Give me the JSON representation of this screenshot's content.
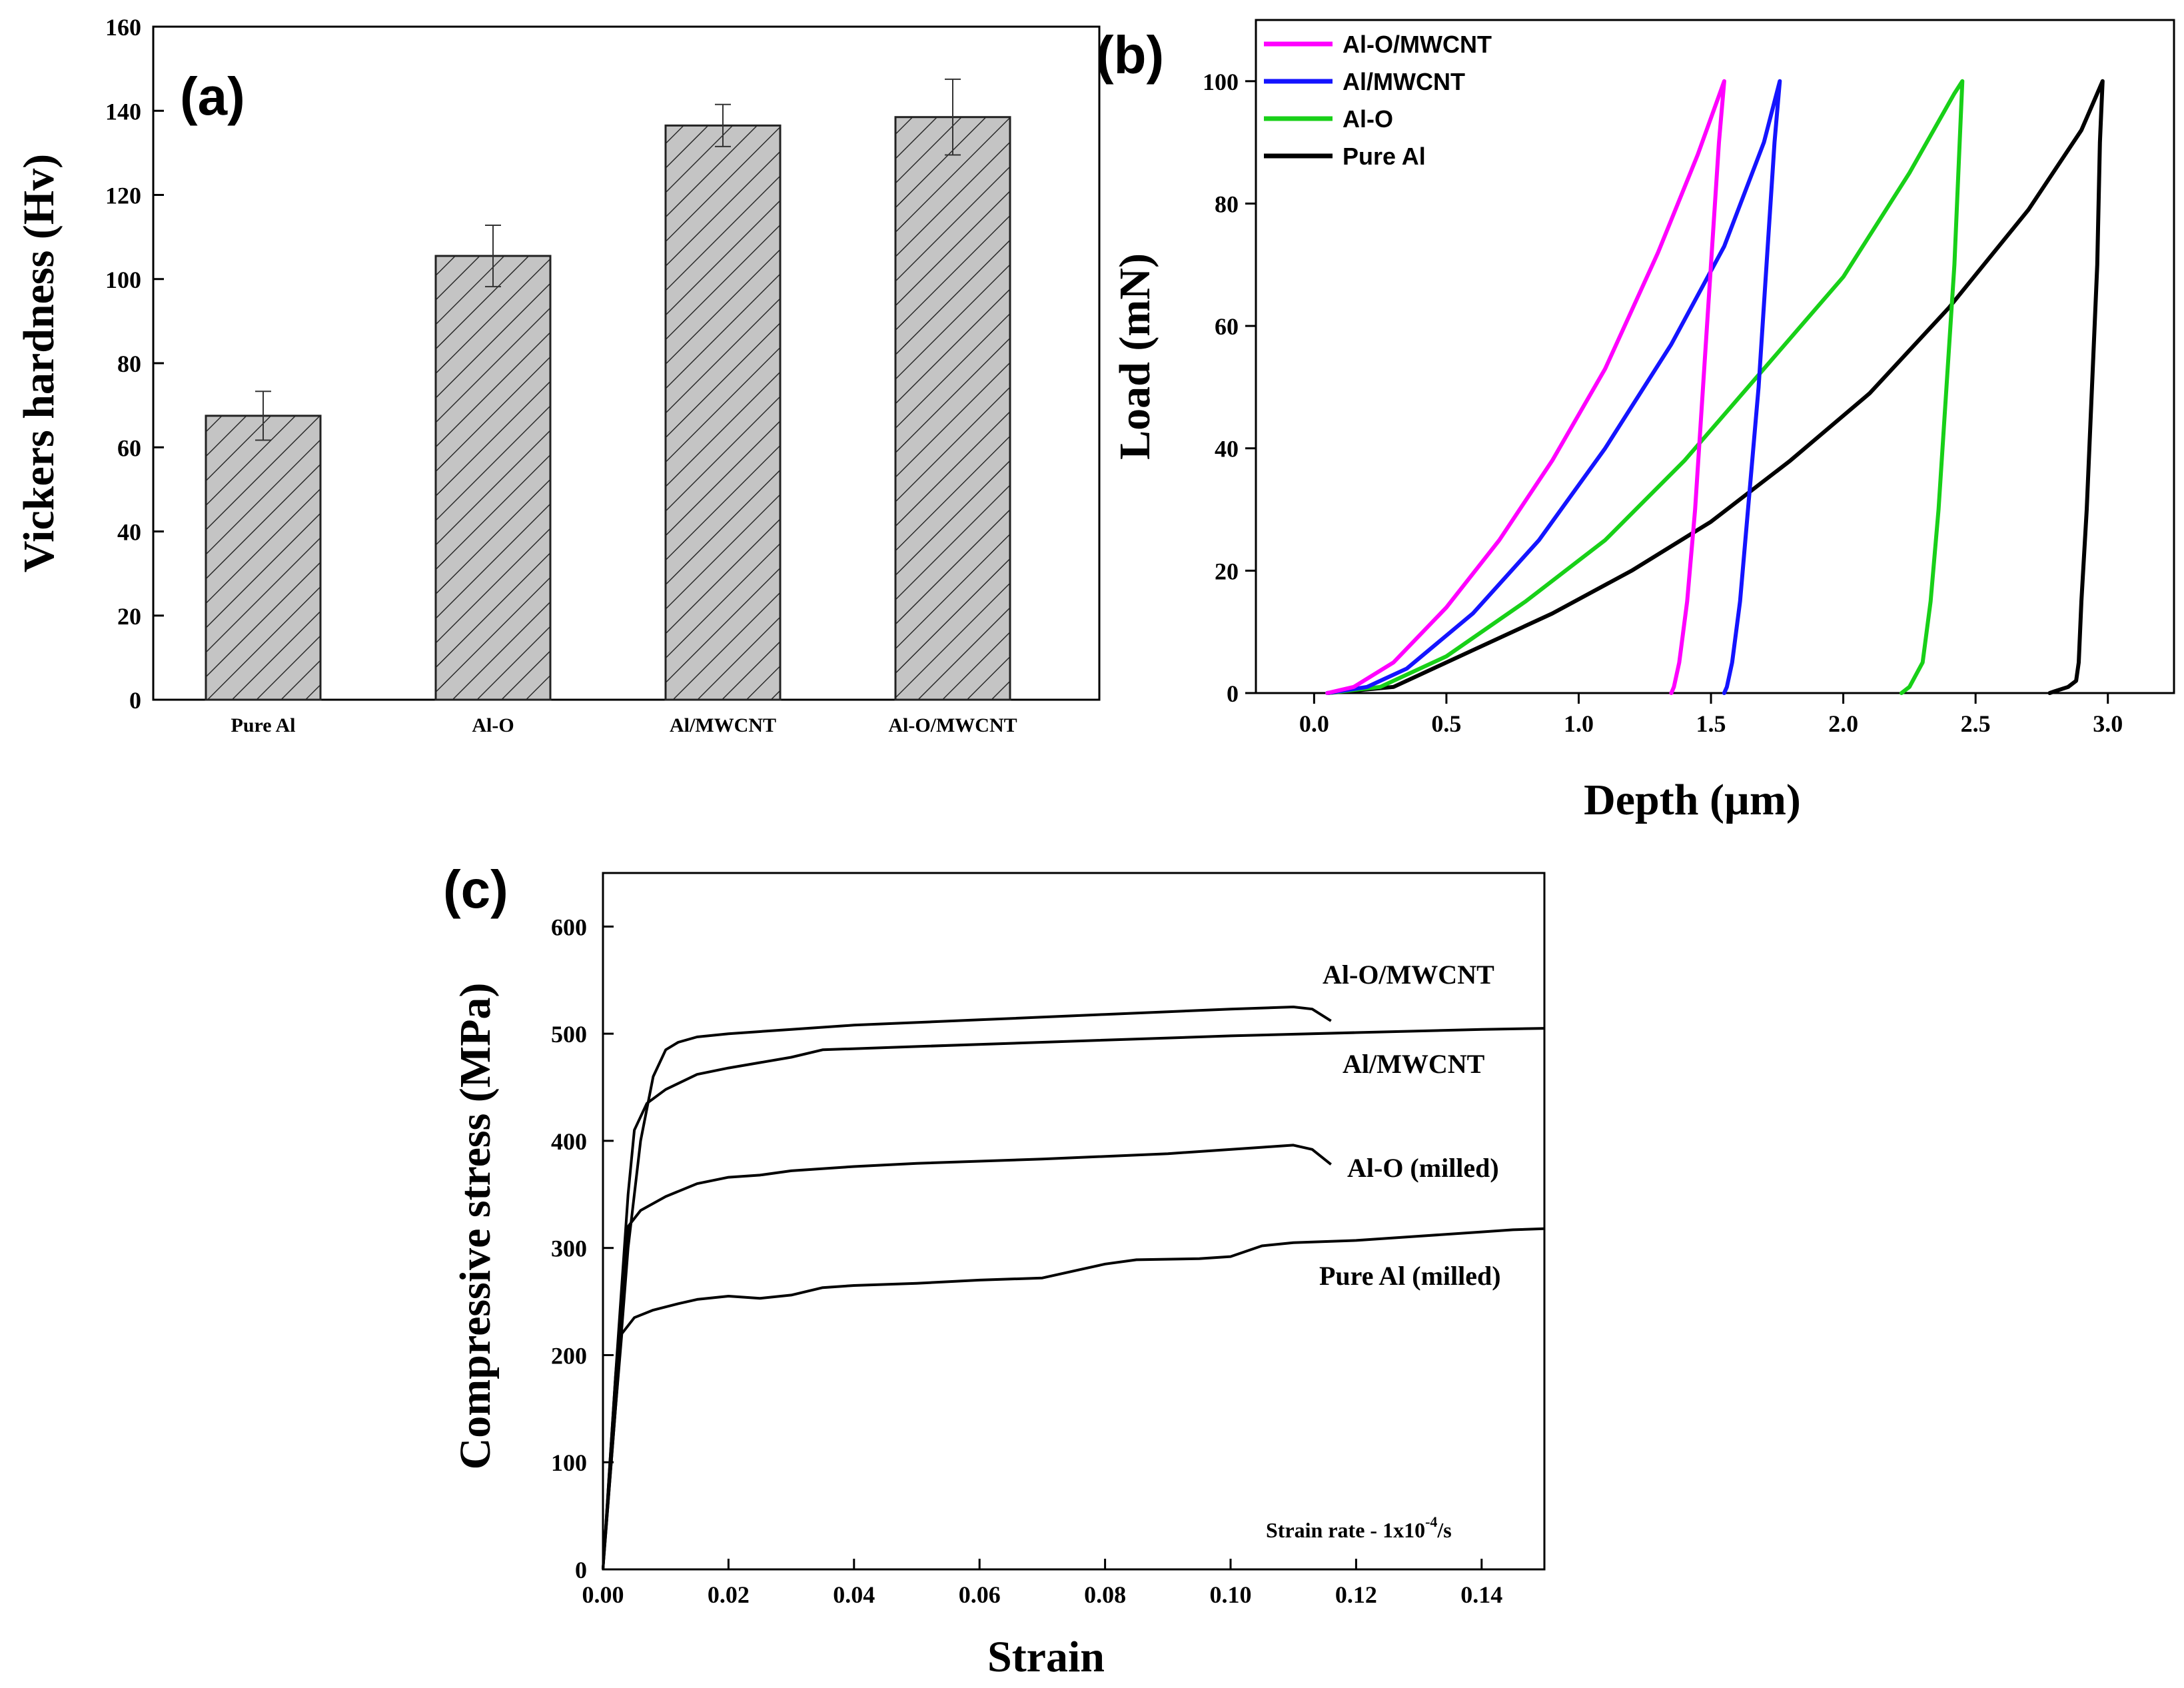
{
  "chart_data": [
    {
      "panel": "(a)",
      "type": "bar",
      "title": "",
      "xlabel": "",
      "ylabel": "Vickers hardness (Hv)",
      "categories": [
        "Pure Al",
        "Al-O",
        "Al/MWCNT",
        "Al-O/MWCNT"
      ],
      "values": [
        67.5,
        105.5,
        136.5,
        138.5
      ],
      "errors": [
        5.8,
        7.3,
        5.0,
        9.0
      ],
      "ylim": [
        0,
        160
      ],
      "yticks": [
        "0",
        "20",
        "40",
        "60",
        "80",
        "100",
        "120",
        "140",
        "160"
      ],
      "grid": false,
      "colors": {
        "bar_fill": "#c4c4c4",
        "hatch": "#2a2a2a",
        "edge": "#222222"
      }
    },
    {
      "panel": "(b)",
      "type": "line",
      "title": "",
      "xlabel": "Depth (µm)",
      "ylabel": "Load (mN)",
      "xlim": [
        -0.22,
        3.25
      ],
      "ylim": [
        0,
        110
      ],
      "xticks": [
        "0.0",
        "0.5",
        "1.0",
        "1.5",
        "2.0",
        "2.5",
        "3.0"
      ],
      "yticks": [
        "0",
        "20",
        "40",
        "60",
        "80",
        "100"
      ],
      "legend_position": "top-left",
      "series": [
        {
          "name": "Al-O/MWCNT",
          "color": "#ff00ff",
          "loading": [
            [
              0.05,
              0
            ],
            [
              0.15,
              1
            ],
            [
              0.3,
              5
            ],
            [
              0.5,
              14
            ],
            [
              0.7,
              25
            ],
            [
              0.9,
              38
            ],
            [
              1.1,
              53
            ],
            [
              1.3,
              72
            ],
            [
              1.45,
              88
            ],
            [
              1.55,
              100
            ]
          ],
          "unloading": [
            [
              1.55,
              100
            ],
            [
              1.53,
              90
            ],
            [
              1.5,
              70
            ],
            [
              1.47,
              50
            ],
            [
              1.44,
              30
            ],
            [
              1.41,
              15
            ],
            [
              1.38,
              5
            ],
            [
              1.36,
              1
            ],
            [
              1.35,
              0
            ]
          ]
        },
        {
          "name": "Al/MWCNT",
          "color": "#1414ff",
          "loading": [
            [
              0.05,
              0
            ],
            [
              0.2,
              1
            ],
            [
              0.35,
              4
            ],
            [
              0.6,
              13
            ],
            [
              0.85,
              25
            ],
            [
              1.1,
              40
            ],
            [
              1.35,
              57
            ],
            [
              1.55,
              73
            ],
            [
              1.7,
              90
            ],
            [
              1.76,
              100
            ]
          ],
          "unloading": [
            [
              1.76,
              100
            ],
            [
              1.74,
              90
            ],
            [
              1.71,
              70
            ],
            [
              1.68,
              50
            ],
            [
              1.64,
              30
            ],
            [
              1.61,
              15
            ],
            [
              1.58,
              5
            ],
            [
              1.56,
              1
            ],
            [
              1.55,
              0
            ]
          ]
        },
        {
          "name": "Al-O",
          "color": "#18d018",
          "loading": [
            [
              0.05,
              0
            ],
            [
              0.25,
              1
            ],
            [
              0.5,
              6
            ],
            [
              0.8,
              15
            ],
            [
              1.1,
              25
            ],
            [
              1.4,
              38
            ],
            [
              1.7,
              53
            ],
            [
              2.0,
              68
            ],
            [
              2.25,
              85
            ],
            [
              2.42,
              98
            ],
            [
              2.45,
              100
            ]
          ],
          "unloading": [
            [
              2.45,
              100
            ],
            [
              2.44,
              90
            ],
            [
              2.42,
              70
            ],
            [
              2.39,
              50
            ],
            [
              2.36,
              30
            ],
            [
              2.33,
              15
            ],
            [
              2.3,
              5
            ],
            [
              2.25,
              1
            ],
            [
              2.22,
              0
            ]
          ]
        },
        {
          "name": "Pure Al",
          "color": "#000000",
          "loading": [
            [
              0.05,
              0
            ],
            [
              0.3,
              1
            ],
            [
              0.6,
              7
            ],
            [
              0.9,
              13
            ],
            [
              1.2,
              20
            ],
            [
              1.5,
              28
            ],
            [
              1.8,
              38
            ],
            [
              2.1,
              49
            ],
            [
              2.4,
              63
            ],
            [
              2.7,
              79
            ],
            [
              2.9,
              92
            ],
            [
              2.98,
              100
            ]
          ],
          "unloading": [
            [
              2.98,
              100
            ],
            [
              2.97,
              90
            ],
            [
              2.96,
              70
            ],
            [
              2.94,
              50
            ],
            [
              2.92,
              30
            ],
            [
              2.9,
              15
            ],
            [
              2.89,
              5
            ],
            [
              2.88,
              2
            ],
            [
              2.85,
              1
            ],
            [
              2.8,
              0.3
            ],
            [
              2.78,
              0
            ]
          ]
        }
      ]
    },
    {
      "panel": "(c)",
      "type": "line",
      "title": "",
      "xlabel": "Strain",
      "ylabel": "Compressive stress (MPa)",
      "xlim": [
        0,
        0.15
      ],
      "ylim": [
        0,
        650
      ],
      "xticks": [
        "0.00",
        "0.02",
        "0.04",
        "0.06",
        "0.08",
        "0.10",
        "0.12",
        "0.14"
      ],
      "yticks": [
        "0",
        "100",
        "200",
        "300",
        "400",
        "500",
        "600"
      ],
      "annotation_text": "Strain rate - 1x10",
      "annotation_exp": "-4",
      "annotation_unit": "/s",
      "series": [
        {
          "name": "Al-O/MWCNT",
          "color": "#000000",
          "points": [
            [
              0,
              0
            ],
            [
              0.002,
              150
            ],
            [
              0.004,
              300
            ],
            [
              0.006,
              400
            ],
            [
              0.008,
              460
            ],
            [
              0.01,
              485
            ],
            [
              0.012,
              492
            ],
            [
              0.015,
              497
            ],
            [
              0.02,
              500
            ],
            [
              0.03,
              504
            ],
            [
              0.04,
              508
            ],
            [
              0.06,
              513
            ],
            [
              0.08,
              518
            ],
            [
              0.1,
              523
            ],
            [
              0.11,
              525
            ],
            [
              0.113,
              523
            ],
            [
              0.116,
              512
            ]
          ]
        },
        {
          "name": "Al/MWCNT",
          "color": "#000000",
          "points": [
            [
              0,
              0
            ],
            [
              0.002,
              180
            ],
            [
              0.004,
              350
            ],
            [
              0.005,
              410
            ],
            [
              0.007,
              435
            ],
            [
              0.01,
              448
            ],
            [
              0.015,
              462
            ],
            [
              0.02,
              468
            ],
            [
              0.03,
              478
            ],
            [
              0.035,
              485
            ],
            [
              0.05,
              488
            ],
            [
              0.07,
              492
            ],
            [
              0.1,
              498
            ],
            [
              0.12,
              501
            ],
            [
              0.14,
              504
            ],
            [
              0.15,
              505
            ]
          ]
        },
        {
          "name": "Al-O (milled)",
          "color": "#000000",
          "points": [
            [
              0,
              0
            ],
            [
              0.002,
              180
            ],
            [
              0.004,
              320
            ],
            [
              0.006,
              335
            ],
            [
              0.01,
              348
            ],
            [
              0.015,
              360
            ],
            [
              0.02,
              366
            ],
            [
              0.025,
              368
            ],
            [
              0.03,
              372
            ],
            [
              0.04,
              376
            ],
            [
              0.05,
              379
            ],
            [
              0.07,
              383
            ],
            [
              0.09,
              388
            ],
            [
              0.105,
              394
            ],
            [
              0.11,
              396
            ],
            [
              0.113,
              392
            ],
            [
              0.116,
              378
            ]
          ]
        },
        {
          "name": "Pure Al (milled)",
          "color": "#000000",
          "points": [
            [
              0,
              0
            ],
            [
              0.002,
              150
            ],
            [
              0.003,
              220
            ],
            [
              0.005,
              235
            ],
            [
              0.008,
              242
            ],
            [
              0.012,
              248
            ],
            [
              0.015,
              252
            ],
            [
              0.02,
              255
            ],
            [
              0.025,
              253
            ],
            [
              0.03,
              256
            ],
            [
              0.035,
              263
            ],
            [
              0.04,
              265
            ],
            [
              0.05,
              267
            ],
            [
              0.06,
              270
            ],
            [
              0.07,
              272
            ],
            [
              0.08,
              285
            ],
            [
              0.085,
              289
            ],
            [
              0.095,
              290
            ],
            [
              0.1,
              292
            ],
            [
              0.105,
              302
            ],
            [
              0.11,
              305
            ],
            [
              0.12,
              307
            ],
            [
              0.13,
              311
            ],
            [
              0.14,
              315
            ],
            [
              0.145,
              317
            ],
            [
              0.15,
              318
            ]
          ]
        }
      ]
    }
  ]
}
